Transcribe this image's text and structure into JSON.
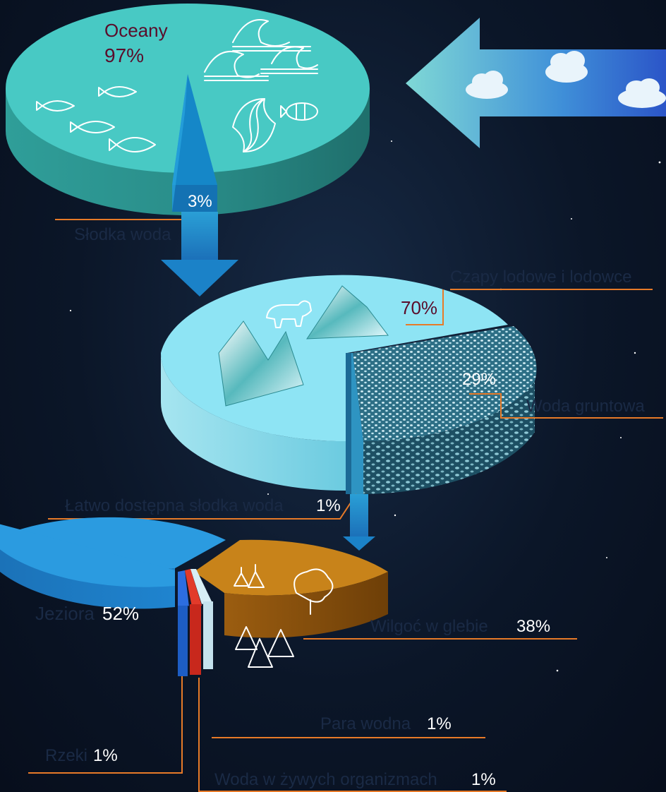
{
  "chart_data": [
    {
      "type": "pie",
      "categories": [
        "Oceany",
        "Słodka woda"
      ],
      "values": [
        97,
        3
      ],
      "labels": {
        "oceans_name": "Oceany",
        "oceans_pct": "97%",
        "fresh_name": "Słodka woda",
        "fresh_pct": "3%"
      }
    },
    {
      "type": "pie",
      "categories": [
        "Czapy lodowe i lodowce",
        "Woda gruntowa",
        "Łatwo dostępna słodka woda"
      ],
      "values": [
        70,
        29,
        1
      ],
      "labels": {
        "ice_name": "Czapy lodowe i lodowce",
        "ice_pct": "70%",
        "ground_name": "Woda gruntowa",
        "ground_pct": "29%",
        "access_name": "Łatwo dostępna słodka woda",
        "access_pct": "1%"
      }
    },
    {
      "type": "pie",
      "categories": [
        "Jeziora",
        "Wilgoć w glebie",
        "Para wodna",
        "Woda w żywych organizmach",
        "Rzeki"
      ],
      "values": [
        52,
        38,
        1,
        1,
        1
      ],
      "labels": {
        "lakes_name": "Jeziora",
        "lakes_pct": "52%",
        "soil_name": "Wilgoć w glebie",
        "soil_pct": "38%",
        "vapor_name": "Para wodna",
        "vapor_pct": "1%",
        "bio_name": "Woda w żywych organizmach",
        "bio_pct": "1%",
        "rivers_name": "Rzeki",
        "rivers_pct": "1%"
      }
    }
  ],
  "colors": {
    "oceans": "#48c9c4",
    "ice": "#8ee4f4",
    "groundwater": "#2d6f86",
    "lakes": "#2b9be0",
    "soil": "#c8831a",
    "rivers": "#2c6de0",
    "biology": "#e23a2a",
    "vapor": "#d7eef6",
    "leader_line": "#e77a28",
    "label_dark": "#5a0d2b"
  },
  "icons": [
    "evaporation-arrow-icon",
    "cloud-icon",
    "wave-icon",
    "fish-icon",
    "dolphin-icon",
    "clownfish-icon",
    "iceberg-icon",
    "polar-bear-icon",
    "tree-icon",
    "pine-trees-icon",
    "down-arrow-icon"
  ]
}
